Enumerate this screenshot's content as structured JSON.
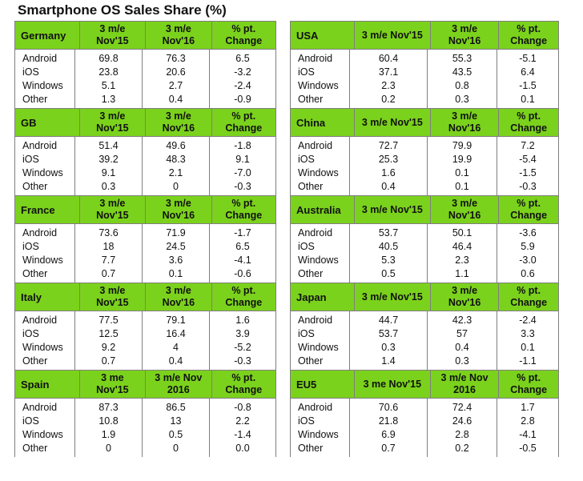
{
  "title": "Smartphone OS Sales Share (%)",
  "chart_data": {
    "type": "table",
    "title": "Smartphone OS Sales Share (%)",
    "tables": [
      {
        "region": "Germany",
        "headers": [
          "3 m/e\nNov'15",
          "3 m/e\nNov'16",
          "% pt.\nChange"
        ],
        "rows": [
          [
            "Android",
            "69.8",
            "76.3",
            "6.5"
          ],
          [
            "iOS",
            "23.8",
            "20.6",
            "-3.2"
          ],
          [
            "Windows",
            "5.1",
            "2.7",
            "-2.4"
          ],
          [
            "Other",
            "1.3",
            "0.4",
            "-0.9"
          ]
        ]
      },
      {
        "region": "USA",
        "headers": [
          "3 m/e Nov'15",
          "3 m/e\nNov'16",
          "% pt.\nChange"
        ],
        "rows": [
          [
            "Android",
            "60.4",
            "55.3",
            "-5.1"
          ],
          [
            "iOS",
            "37.1",
            "43.5",
            "6.4"
          ],
          [
            "Windows",
            "2.3",
            "0.8",
            "-1.5"
          ],
          [
            "Other",
            "0.2",
            "0.3",
            "0.1"
          ]
        ]
      },
      {
        "region": "GB",
        "headers": [
          "3 m/e\nNov'15",
          "3 m/e\nNov'16",
          "% pt.\nChange"
        ],
        "rows": [
          [
            "Android",
            "51.4",
            "49.6",
            "-1.8"
          ],
          [
            "iOS",
            "39.2",
            "48.3",
            "9.1"
          ],
          [
            "Windows",
            "9.1",
            "2.1",
            "-7.0"
          ],
          [
            "Other",
            "0.3",
            "0",
            "-0.3"
          ]
        ]
      },
      {
        "region": "China",
        "headers": [
          "3 m/e Nov'15",
          "3 m/e\nNov'16",
          "% pt.\nChange"
        ],
        "rows": [
          [
            "Android",
            "72.7",
            "79.9",
            "7.2"
          ],
          [
            "iOS",
            "25.3",
            "19.9",
            "-5.4"
          ],
          [
            "Windows",
            "1.6",
            "0.1",
            "-1.5"
          ],
          [
            "Other",
            "0.4",
            "0.1",
            "-0.3"
          ]
        ]
      },
      {
        "region": "France",
        "headers": [
          "3 m/e\nNov'15",
          "3 m/e\nNov'16",
          "% pt.\nChange"
        ],
        "rows": [
          [
            "Android",
            "73.6",
            "71.9",
            "-1.7"
          ],
          [
            "iOS",
            "18",
            "24.5",
            "6.5"
          ],
          [
            "Windows",
            "7.7",
            "3.6",
            "-4.1"
          ],
          [
            "Other",
            "0.7",
            "0.1",
            "-0.6"
          ]
        ]
      },
      {
        "region": "Australia",
        "headers": [
          "3 m/e Nov'15",
          "3 m/e\nNov'16",
          "% pt.\nChange"
        ],
        "rows": [
          [
            "Android",
            "53.7",
            "50.1",
            "-3.6"
          ],
          [
            "iOS",
            "40.5",
            "46.4",
            "5.9"
          ],
          [
            "Windows",
            "5.3",
            "2.3",
            "-3.0"
          ],
          [
            "Other",
            "0.5",
            "1.1",
            "0.6"
          ]
        ]
      },
      {
        "region": "Italy",
        "headers": [
          "3 m/e\nNov'15",
          "3 m/e\nNov'16",
          "% pt.\nChange"
        ],
        "rows": [
          [
            "Android",
            "77.5",
            "79.1",
            "1.6"
          ],
          [
            "iOS",
            "12.5",
            "16.4",
            "3.9"
          ],
          [
            "Windows",
            "9.2",
            "4",
            "-5.2"
          ],
          [
            "Other",
            "0.7",
            "0.4",
            "-0.3"
          ]
        ]
      },
      {
        "region": "Japan",
        "headers": [
          "3 m/e Nov'15",
          "3 m/e\nNov'16",
          "% pt.\nChange"
        ],
        "rows": [
          [
            "Android",
            "44.7",
            "42.3",
            "-2.4"
          ],
          [
            "iOS",
            "53.7",
            "57",
            "3.3"
          ],
          [
            "Windows",
            "0.3",
            "0.4",
            "0.1"
          ],
          [
            "Other",
            "1.4",
            "0.3",
            "-1.1"
          ]
        ]
      },
      {
        "region": "Spain",
        "headers": [
          "3 me\nNov'15",
          "3 m/e Nov\n2016",
          "% pt.\nChange"
        ],
        "rows": [
          [
            "Android",
            "87.3",
            "86.5",
            "-0.8"
          ],
          [
            "iOS",
            "10.8",
            "13",
            "2.2"
          ],
          [
            "Windows",
            "1.9",
            "0.5",
            "-1.4"
          ],
          [
            "Other",
            "0",
            "0",
            "0.0"
          ]
        ]
      },
      {
        "region": "EU5",
        "headers": [
          "3 me Nov'15",
          "3 m/e Nov\n2016",
          "% pt.\nChange"
        ],
        "rows": [
          [
            "Android",
            "70.6",
            "72.4",
            "1.7"
          ],
          [
            "iOS",
            "21.8",
            "24.6",
            "2.8"
          ],
          [
            "Windows",
            "6.9",
            "2.8",
            "-4.1"
          ],
          [
            "Other",
            "0.7",
            "0.2",
            "-0.5"
          ]
        ]
      }
    ]
  }
}
